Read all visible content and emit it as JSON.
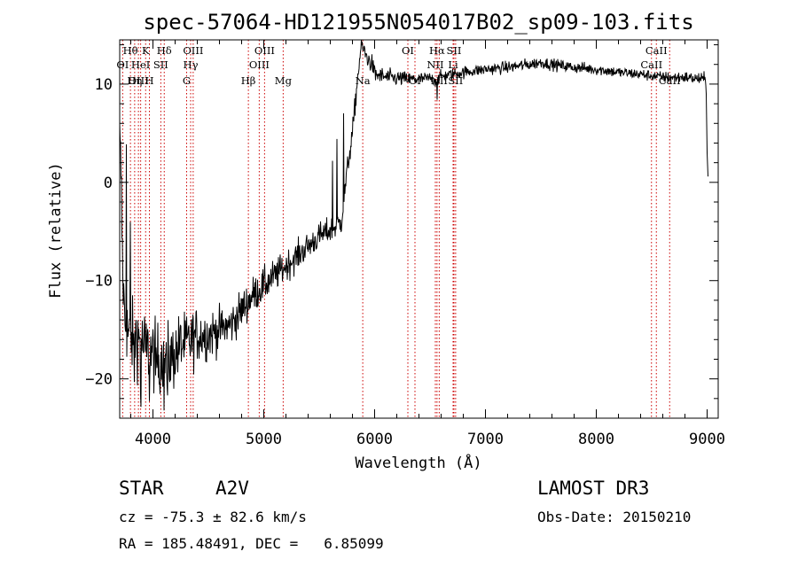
{
  "chart_data": {
    "type": "line",
    "title": "spec-57064-HD121955N054017B02_sp09-103.fits",
    "xlabel": "Wavelength (Å)",
    "ylabel": "Flux (relative)",
    "xlim": [
      3700,
      9100
    ],
    "ylim": [
      -24,
      14.5
    ],
    "xticks": [
      4000,
      5000,
      6000,
      7000,
      8000,
      9000
    ],
    "yticks": [
      -20,
      -10,
      0,
      10
    ],
    "grid": false,
    "series": [
      {
        "name": "flux",
        "color": "#000000",
        "anchors": [
          [
            3700,
            4
          ],
          [
            3712,
            1
          ],
          [
            3725,
            -8
          ],
          [
            3740,
            -13
          ],
          [
            3760,
            -15
          ],
          [
            3800,
            -16
          ],
          [
            3850,
            -15.5
          ],
          [
            3900,
            -16.5
          ],
          [
            3950,
            -17
          ],
          [
            4000,
            -17.5
          ],
          [
            4050,
            -18
          ],
          [
            4100,
            -17.5
          ],
          [
            4150,
            -18
          ],
          [
            4200,
            -17.5
          ],
          [
            4250,
            -16.5
          ],
          [
            4300,
            -16.5
          ],
          [
            4350,
            -16
          ],
          [
            4400,
            -15.5
          ],
          [
            4500,
            -15.5
          ],
          [
            4600,
            -15
          ],
          [
            4700,
            -14.5
          ],
          [
            4800,
            -13
          ],
          [
            4900,
            -11.5
          ],
          [
            5000,
            -10.5
          ],
          [
            5100,
            -9.5
          ],
          [
            5200,
            -8.5
          ],
          [
            5300,
            -7.5
          ],
          [
            5400,
            -6.5
          ],
          [
            5500,
            -5.5
          ],
          [
            5580,
            -5
          ],
          [
            5650,
            -4.5
          ],
          [
            5700,
            -4
          ],
          [
            5750,
            1
          ],
          [
            5800,
            5
          ],
          [
            5850,
            11
          ],
          [
            5880,
            14
          ],
          [
            5900,
            13.5
          ],
          [
            5940,
            12.5
          ],
          [
            5980,
            12
          ],
          [
            6000,
            11
          ],
          [
            6100,
            10.7
          ],
          [
            6200,
            10.6
          ],
          [
            6300,
            10.5
          ],
          [
            6400,
            10.5
          ],
          [
            6500,
            10.6
          ],
          [
            6560,
            10.3
          ],
          [
            6600,
            10.8
          ],
          [
            6700,
            11
          ],
          [
            6800,
            11.2
          ],
          [
            7000,
            11.5
          ],
          [
            7200,
            11.7
          ],
          [
            7400,
            12
          ],
          [
            7500,
            12.2
          ],
          [
            7600,
            12
          ],
          [
            7800,
            11.7
          ],
          [
            8000,
            11.5
          ],
          [
            8200,
            11.2
          ],
          [
            8400,
            11
          ],
          [
            8600,
            10.7
          ],
          [
            8800,
            10.7
          ],
          [
            8950,
            10.5
          ],
          [
            8990,
            10.5
          ],
          [
            9000,
            3
          ],
          [
            9010,
            0
          ]
        ],
        "features": [
          [
            3760,
            7
          ],
          [
            3795,
            -5
          ],
          [
            3830,
            -19
          ],
          [
            3890,
            -21
          ],
          [
            3935,
            -18
          ],
          [
            3968,
            -22
          ],
          [
            4025,
            -21
          ],
          [
            4060,
            -20
          ],
          [
            4102,
            -21
          ],
          [
            4130,
            -22.5
          ],
          [
            5620,
            2
          ],
          [
            5660,
            4.5
          ],
          [
            5720,
            7
          ],
          [
            6563,
            8.8
          ]
        ],
        "noise_sigma": [
          [
            3700,
            2.8
          ],
          [
            4200,
            2.5
          ],
          [
            4600,
            1.6
          ],
          [
            5200,
            1.1
          ],
          [
            5700,
            0.9
          ],
          [
            5900,
            0.7
          ],
          [
            6500,
            0.45
          ],
          [
            8500,
            0.4
          ],
          [
            9000,
            0.45
          ]
        ]
      }
    ],
    "emission_lines": [
      {
        "label": "Hθ",
        "wavelength": 3797,
        "row": 1
      },
      {
        "label": "K",
        "wavelength": 3934,
        "row": 1
      },
      {
        "label": "Hδ",
        "wavelength": 4102,
        "row": 1
      },
      {
        "label": "OIII",
        "wavelength": 4363,
        "row": 1
      },
      {
        "label": "OIII",
        "wavelength": 5007,
        "row": 1
      },
      {
        "label": "OI",
        "wavelength": 6300,
        "row": 1
      },
      {
        "label": "Hα",
        "wavelength": 6563,
        "row": 1
      },
      {
        "label": "SII",
        "wavelength": 6716,
        "row": 1
      },
      {
        "label": "CaII",
        "wavelength": 8542,
        "row": 1
      },
      {
        "label": "OI",
        "wavelength": 3727,
        "row": 2
      },
      {
        "label": "HeI",
        "wavelength": 3889,
        "row": 2
      },
      {
        "label": "SII",
        "wavelength": 4071,
        "row": 2
      },
      {
        "label": "Hγ",
        "wavelength": 4340,
        "row": 2
      },
      {
        "label": "OIII",
        "wavelength": 4959,
        "row": 2
      },
      {
        "label": "NII",
        "wavelength": 6548,
        "row": 2
      },
      {
        "label": "Li",
        "wavelength": 6708,
        "row": 2
      },
      {
        "label": "CaII",
        "wavelength": 8498,
        "row": 2
      },
      {
        "label": "OIII",
        "wavelength": 3869,
        "row": 3
      },
      {
        "label": "Hη",
        "wavelength": 3835,
        "row": 3
      },
      {
        "label": "H",
        "wavelength": 3968,
        "row": 3
      },
      {
        "label": "G",
        "wavelength": 4304,
        "row": 3
      },
      {
        "label": "Hβ",
        "wavelength": 4861,
        "row": 3
      },
      {
        "label": "Mg",
        "wavelength": 5175,
        "row": 3
      },
      {
        "label": "Na",
        "wavelength": 5893,
        "row": 3
      },
      {
        "label": "OI",
        "wavelength": 6364,
        "row": 3
      },
      {
        "label": "NII",
        "wavelength": 6583,
        "row": 3
      },
      {
        "label": "SII",
        "wavelength": 6731,
        "row": 3
      },
      {
        "label": "CaII",
        "wavelength": 8662,
        "row": 3
      }
    ],
    "line_color": "#cc0000"
  },
  "info": {
    "object_class": "STAR",
    "subclass": "A2V",
    "survey": "LAMOST DR3",
    "velocity": "cz = -75.3 ± 82.6 km/s",
    "obs_date": "Obs-Date: 20150210",
    "coords": "RA = 185.48491, DEC =   6.85099"
  }
}
